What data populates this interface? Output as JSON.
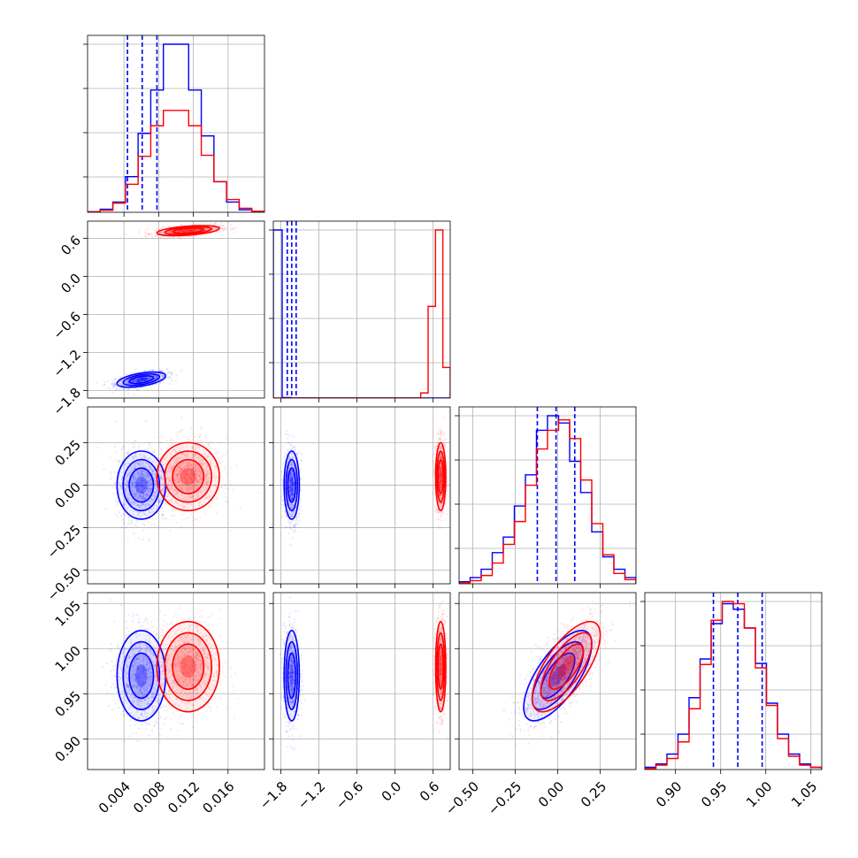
{
  "chart_data": {
    "type": "corner",
    "title": "",
    "parameters": [
      {
        "ticks": [
          0.004,
          0.008,
          0.012,
          0.016
        ],
        "tick_labels": [
          "0.004",
          "0.008",
          "0.012",
          "0.016"
        ],
        "range": [
          -0.0002,
          0.0202
        ]
      },
      {
        "ticks": [
          -1.8,
          -1.2,
          -0.6,
          0.0,
          0.6
        ],
        "tick_labels": [
          "−1.8",
          "−1.2",
          "−0.6",
          "0.0",
          "0.6"
        ],
        "range": [
          -1.92,
          0.87
        ]
      },
      {
        "ticks": [
          -0.5,
          -0.25,
          0.0,
          0.25
        ],
        "tick_labels": [
          "−0.50",
          "−0.25",
          "0.00",
          "0.25"
        ],
        "range": [
          -0.58,
          0.46
        ]
      },
      {
        "ticks": [
          0.9,
          0.95,
          1.0,
          1.05
        ],
        "tick_labels": [
          "0.90",
          "0.95",
          "1.00",
          "1.05"
        ],
        "range": [
          0.866,
          1.062
        ]
      }
    ],
    "grid": true,
    "series": [
      {
        "color": "#0000ff",
        "mean": [
          0.006,
          -1.63,
          0.0,
          0.97
        ],
        "std": [
          0.0014,
          0.06,
          0.1,
          0.025
        ],
        "corr_12": 0.5,
        "corr_34": 0.7,
        "quantiles": [
          [
            0.0044,
            0.0061,
            0.0078
          ],
          [
            -1.7,
            -1.63,
            -1.56
          ],
          [
            -0.12,
            -0.01,
            0.1
          ],
          [
            0.942,
            0.969,
            0.996
          ]
        ],
        "histograms": [
          [
            1,
            6,
            20,
            70,
            155,
            240,
            330,
            330,
            240,
            150,
            60,
            20,
            5,
            1
          ],
          [
            330,
            1,
            0,
            0,
            0,
            0,
            0,
            0,
            0,
            0,
            0,
            0,
            0,
            0,
            0,
            0,
            0,
            0,
            0,
            0
          ],
          [
            2,
            6,
            14,
            30,
            45,
            75,
            105,
            148,
            162,
            155,
            118,
            88,
            50,
            26,
            14,
            6
          ],
          [
            2,
            5,
            14,
            32,
            65,
            100,
            132,
            150,
            145,
            128,
            96,
            60,
            32,
            14,
            5,
            2
          ]
        ]
      },
      {
        "color": "#ff0000",
        "mean": [
          0.0114,
          0.72,
          0.05,
          0.98
        ],
        "std": [
          0.0018,
          0.04,
          0.1,
          0.025
        ],
        "corr_12": 0.45,
        "corr_34": 0.7,
        "quantiles": [],
        "histograms": [
          [
            1,
            4,
            18,
            55,
            110,
            170,
            200,
            200,
            170,
            112,
            60,
            25,
            8,
            2
          ],
          [
            0,
            0,
            0,
            0,
            0,
            0,
            0,
            0,
            0,
            0,
            0,
            0,
            0,
            0,
            0,
            0,
            0,
            0,
            0,
            0,
            10,
            180,
            330,
            60
          ],
          [
            1,
            3,
            8,
            20,
            38,
            60,
            95,
            130,
            148,
            158,
            140,
            100,
            58,
            28,
            10,
            4
          ],
          [
            1,
            4,
            10,
            25,
            55,
            95,
            135,
            152,
            150,
            128,
            92,
            58,
            28,
            12,
            4,
            2
          ]
        ]
      }
    ]
  }
}
